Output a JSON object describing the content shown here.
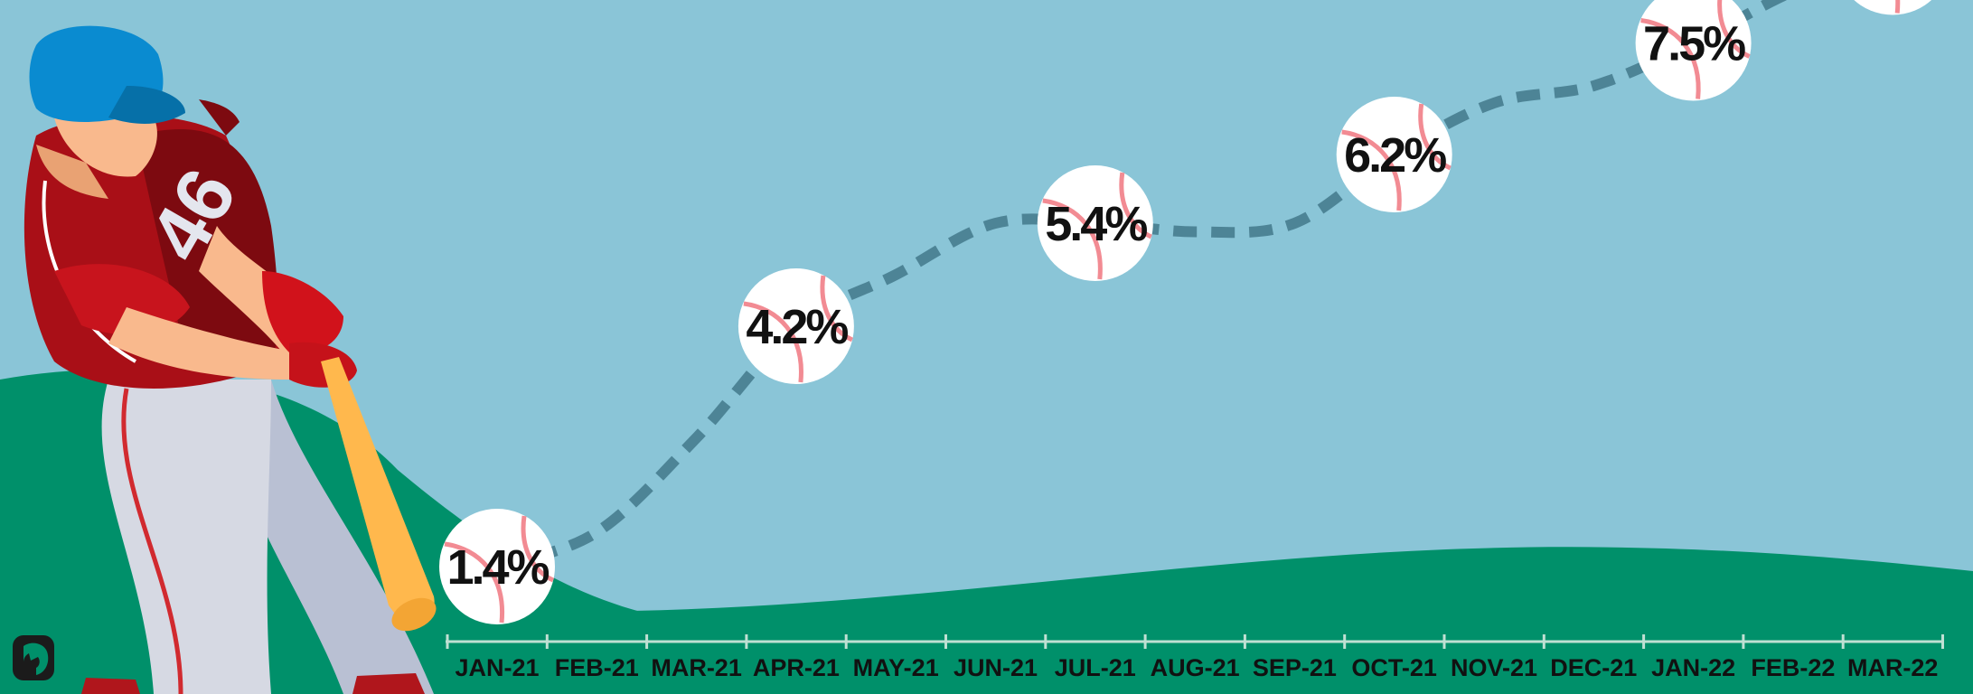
{
  "chart_data": {
    "type": "line",
    "title": "",
    "xlabel": "",
    "ylabel": "",
    "categories": [
      "JAN-21",
      "FEB-21",
      "MAR-21",
      "APR-21",
      "MAY-21",
      "JUN-21",
      "JUL-21",
      "AUG-21",
      "SEP-21",
      "OCT-21",
      "NOV-21",
      "DEC-21",
      "JAN-22",
      "FEB-22",
      "MAR-22"
    ],
    "series": [
      {
        "values": [
          1.4,
          1.8,
          2.9,
          4.2,
          4.8,
          5.4,
          5.4,
          5.3,
          5.4,
          6.2,
          6.8,
          7.0,
          7.5,
          8.1,
          8.5
        ]
      }
    ],
    "labeled_points": [
      0,
      3,
      6,
      9,
      12,
      14
    ],
    "value_suffix": "%",
    "ylim": [
      0,
      9
    ],
    "grid": false,
    "legend": "none",
    "colors": {
      "sky": "#8ac5d7",
      "grass": "#00906a",
      "line": "#4d8496",
      "ball": "#ffffff",
      "stitch": "#f28b93",
      "axis": "#bfe0d3"
    }
  },
  "illustration": {
    "player_number": "46",
    "logo": "elephant-logo"
  }
}
